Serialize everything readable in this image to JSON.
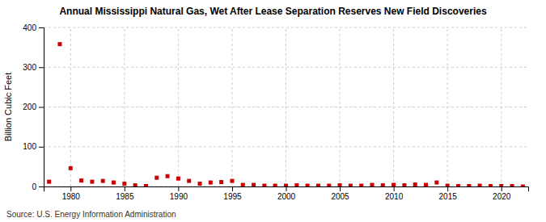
{
  "chart_data": {
    "type": "scatter",
    "title": "Annual Mississippi Natural Gas, Wet After Lease Separation Reserves New Field Discoveries",
    "ylabel": "Billion Cubic Feet",
    "annotations": [
      "Source: U.S. Energy Information Administration"
    ],
    "x": [
      1978,
      1979,
      1980,
      1981,
      1982,
      1983,
      1984,
      1985,
      1986,
      1987,
      1988,
      1989,
      1990,
      1991,
      1992,
      1993,
      1994,
      1995,
      1996,
      1997,
      1998,
      1999,
      2000,
      2001,
      2002,
      2003,
      2004,
      2005,
      2006,
      2007,
      2008,
      2009,
      2010,
      2011,
      2012,
      2013,
      2014,
      2015,
      2016,
      2017,
      2018,
      2019,
      2020,
      2021,
      2022
    ],
    "values": [
      12,
      358,
      46,
      15,
      12,
      14,
      10,
      7,
      3,
      1,
      22,
      26,
      20,
      14,
      7,
      10,
      11,
      14,
      4,
      4,
      2,
      2,
      2,
      3,
      2,
      2,
      2,
      3,
      2,
      2,
      4,
      3,
      4,
      3,
      5,
      4,
      10,
      2,
      1,
      1,
      2,
      1,
      1,
      1,
      0
    ],
    "color": "#cc0000",
    "marker": "square",
    "xlim": [
      1977.5,
      2022.5
    ],
    "ylim": [
      0,
      400
    ],
    "xticks": [
      1980,
      1985,
      1990,
      1995,
      2000,
      2005,
      2010,
      2015,
      2020
    ],
    "yticks": [
      0,
      100,
      200,
      300,
      400
    ],
    "grid": true
  }
}
